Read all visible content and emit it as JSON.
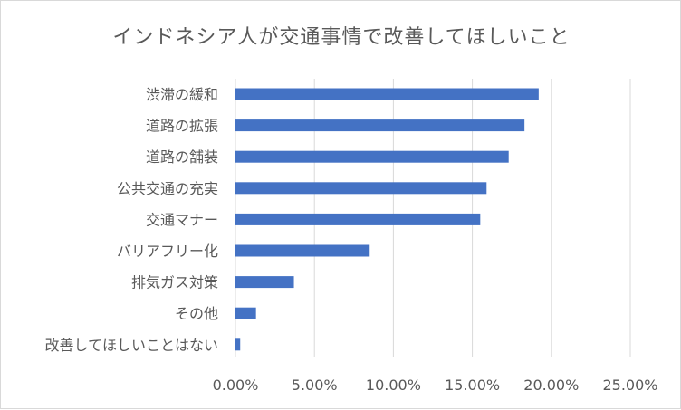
{
  "chart_data": {
    "type": "bar",
    "orientation": "horizontal",
    "title": "インドネシア人が交通事情で改善してほしいこと",
    "categories": [
      "渋滞の緩和",
      "道路の拡張",
      "道路の舗装",
      "公共交通の充実",
      "交通マナー",
      "バリアフリー化",
      "排気ガス対策",
      "その他",
      "改善してほしいことはない"
    ],
    "values": [
      19.2,
      18.3,
      17.3,
      15.9,
      15.5,
      8.5,
      3.7,
      1.3,
      0.3
    ],
    "x_ticks": [
      "0.00%",
      "5.00%",
      "10.00%",
      "15.00%",
      "20.00%",
      "25.00%"
    ],
    "xlim": [
      0,
      25
    ],
    "grid": true,
    "legend": "none",
    "bar_color": "#4472c4",
    "grid_color": "#d9d9d9"
  }
}
